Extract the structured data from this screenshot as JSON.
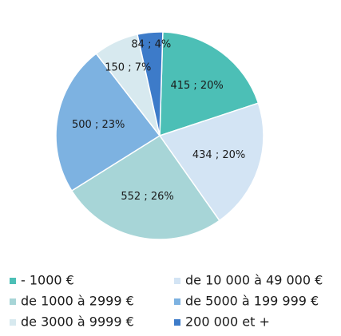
{
  "chart_data": {
    "type": "pie",
    "categories": [
      "- 1000 €",
      "de 10 000 à 49 000 €",
      "de 1000 à 2999 €",
      "de 5000 à 199 999 €",
      "de 3000 à 9999 €",
      "200 000 et +"
    ],
    "values": [
      415,
      434,
      552,
      500,
      150,
      84
    ],
    "value_labels": [
      "415 ; 20%",
      "434 ; 20%",
      "552 ; 26%",
      "500 ; 23%",
      "150 ; 7%",
      "84 ; 4%"
    ],
    "colors": [
      "#4cbfb6",
      "#d3e4f4",
      "#a7d5d7",
      "#7db2e1",
      "#d7e9ef",
      "#3d7bc9"
    ],
    "legend": "bottom"
  }
}
